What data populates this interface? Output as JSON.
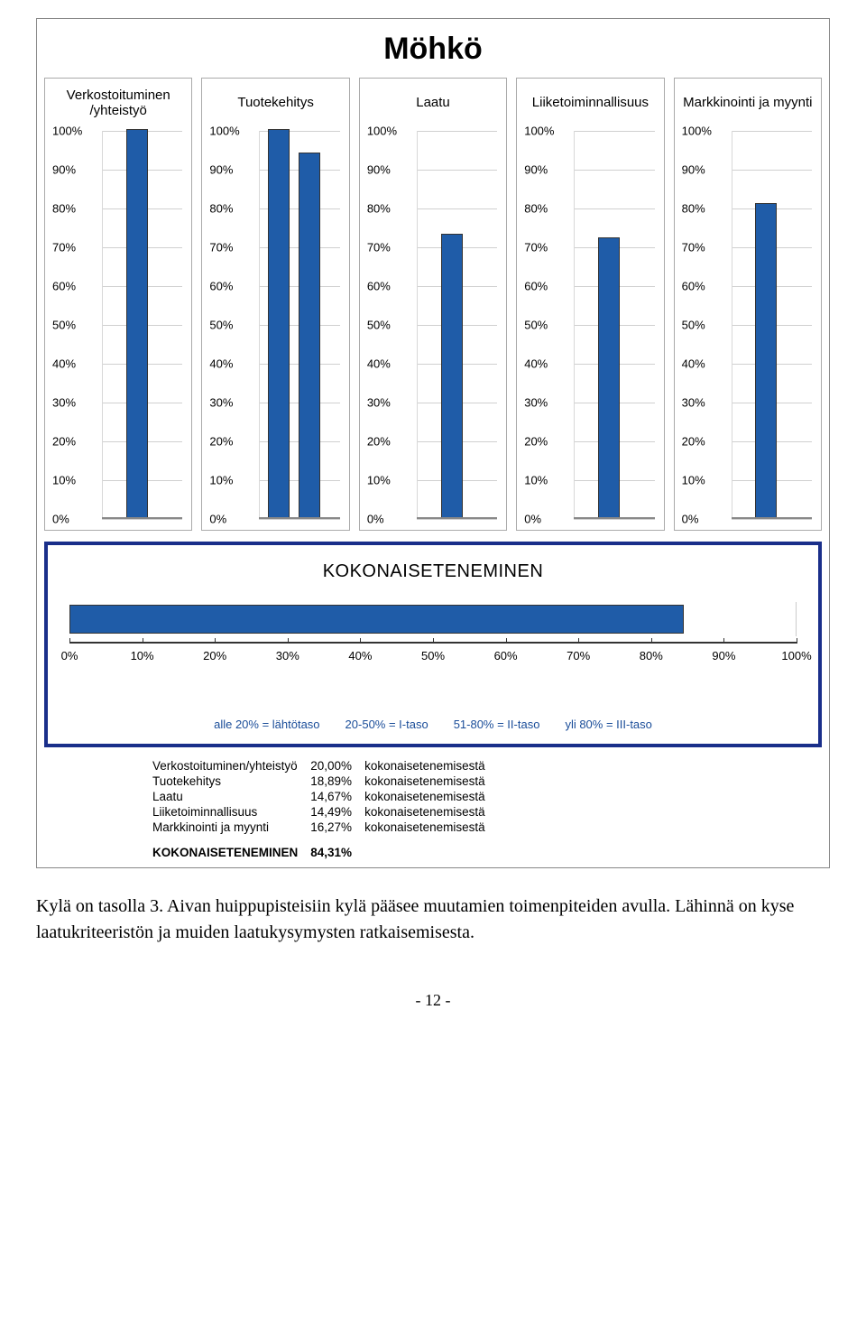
{
  "chart": {
    "title": "Möhkö",
    "bar_color": "#1f5ca8",
    "bar_border_color": "#333333",
    "grid_color": "#d0d0d0",
    "axis_color": "#888888",
    "y_ticks": [
      100,
      90,
      80,
      70,
      60,
      50,
      40,
      30,
      20,
      10,
      0
    ],
    "y_tick_suffix": "%",
    "ylim_max": 100,
    "panel_label_fontsize": 15,
    "tick_fontsize": 13,
    "panels": [
      {
        "label": "Verkostoituminen /yhteistyö",
        "value": 100,
        "second_value": null
      },
      {
        "label": "Tuotekehitys",
        "value": 100,
        "second_value": 94
      },
      {
        "label": "Laatu",
        "value": 73,
        "second_value": null
      },
      {
        "label": "Liiketoiminnallisuus",
        "value": 72,
        "second_value": null
      },
      {
        "label": "Markkinointi ja myynti",
        "value": 81,
        "second_value": null
      }
    ],
    "summary": {
      "title": "KOKONAISETENEMINEN",
      "value": 84.31,
      "bar_color": "#1f5ca8",
      "x_ticks": [
        0,
        10,
        20,
        30,
        40,
        50,
        60,
        70,
        80,
        90,
        100
      ],
      "x_tick_suffix": "%",
      "xlim_max": 100,
      "legend": [
        "alle 20% = lähtötaso",
        "20-50% = I-taso",
        "51-80% = II-taso",
        "yli 80% = III-taso"
      ],
      "breakdown": [
        {
          "label": "Verkostoituminen/yhteistyö",
          "value": "20,00%",
          "suffix": "kokonaisetenemisestä"
        },
        {
          "label": "Tuotekehitys",
          "value": "18,89%",
          "suffix": "kokonaisetenemisestä"
        },
        {
          "label": "Laatu",
          "value": "14,67%",
          "suffix": "kokonaisetenemisestä"
        },
        {
          "label": "Liiketoiminnallisuus",
          "value": "14,49%",
          "suffix": "kokonaisetenemisestä"
        },
        {
          "label": "Markkinointi ja myynti",
          "value": "16,27%",
          "suffix": "kokonaisetenemisestä"
        }
      ],
      "total_label": "KOKONAISETENEMINEN",
      "total_value": "84,31%",
      "box_border_color": "#1a2f8a",
      "legend_color": "#1a4d99"
    }
  },
  "body_text": "Kylä on tasolla 3. Aivan huippupisteisiin kylä pääsee muutamien toimenpiteiden avulla. Lähinnä on kyse laatukriteeristön ja muiden laatukysymysten ratkaisemisesta.",
  "page_number": "- 12 -"
}
